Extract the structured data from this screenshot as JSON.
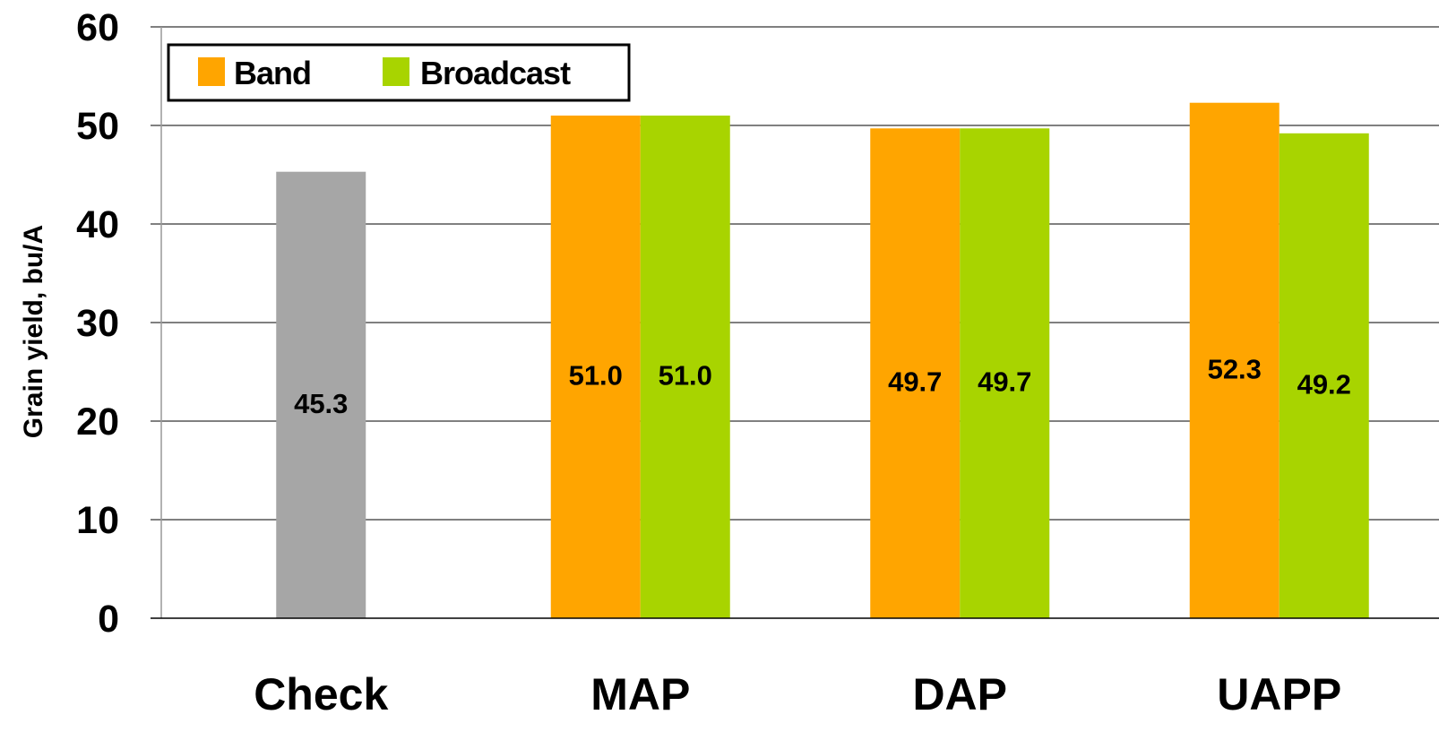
{
  "chart_data": {
    "type": "bar",
    "title": "",
    "xlabel": "",
    "ylabel": "Grain yield, bu/A",
    "ylim": [
      0,
      60
    ],
    "yticks": [
      0,
      10,
      20,
      30,
      40,
      50,
      60
    ],
    "grid": true,
    "legend_position": "top-left",
    "categories": [
      "Check",
      "MAP",
      "DAP",
      "UAPP"
    ],
    "series": [
      {
        "name": "Band",
        "color": "#FFA500",
        "values": [
          null,
          51.0,
          49.7,
          52.3
        ],
        "labels": [
          "",
          "51.0",
          "49.7",
          "52.3"
        ]
      },
      {
        "name": "Broadcast",
        "color": "#A8D400",
        "values": [
          null,
          51.0,
          49.7,
          49.2
        ],
        "labels": [
          "",
          "51.0",
          "49.7",
          "49.2"
        ]
      },
      {
        "name": "",
        "color": "#A6A6A6",
        "values": [
          45.3,
          null,
          null,
          null
        ],
        "labels": [
          "45.3",
          "",
          "",
          ""
        ]
      }
    ]
  }
}
